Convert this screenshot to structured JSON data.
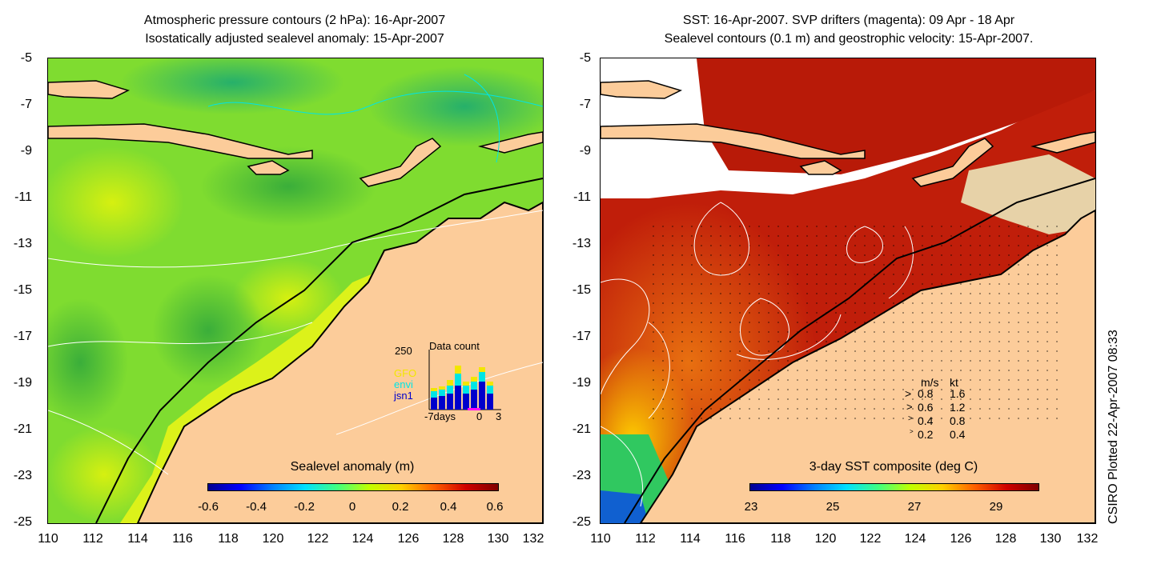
{
  "left_panel": {
    "title_line1": "Atmospheric pressure contours (2 hPa): 16-Apr-2007",
    "title_line2": "Isostatically adjusted sealevel anomaly: 15-Apr-2007",
    "colorbar_label": "Sealevel anomaly (m)",
    "colorbar_ticks": [
      "-0.6",
      "-0.4",
      "-0.2",
      "0",
      "0.2",
      "0.4",
      "0.6"
    ],
    "inset": {
      "title": "Data count",
      "ymax_label": "250",
      "legend": [
        {
          "label": "GFO",
          "color": "#f2e600"
        },
        {
          "label": "envi",
          "color": "#00e5e5"
        },
        {
          "label": "jsn1",
          "color": "#0000cc"
        }
      ],
      "x_labels": [
        "-7days",
        "0",
        "3"
      ]
    }
  },
  "right_panel": {
    "title_line1": "SST: 16-Apr-2007. SVP drifters (magenta): 09 Apr - 18 Apr",
    "title_line2": "Sealevel contours (0.1 m) and geostrophic velocity: 15-Apr-2007.",
    "colorbar_label": "3-day SST composite (deg C)",
    "colorbar_ticks": [
      "23",
      "25",
      "27",
      "29"
    ],
    "velocity_legend": {
      "header_ms": "m/s",
      "header_kt": "kt",
      "rows": [
        {
          "ms": "0.8",
          "kt": "1.6"
        },
        {
          "ms": "0.6",
          "kt": "1.2"
        },
        {
          "ms": "0.4",
          "kt": "0.8"
        },
        {
          "ms": "0.2",
          "kt": "0.4"
        }
      ]
    }
  },
  "axes": {
    "y_ticks": [
      "-5",
      "-7",
      "-9",
      "-11",
      "-13",
      "-15",
      "-17",
      "-19",
      "-21",
      "-23",
      "-25"
    ],
    "x_ticks": [
      "110",
      "112",
      "114",
      "116",
      "118",
      "120",
      "122",
      "124",
      "126",
      "128",
      "130",
      "132"
    ]
  },
  "credit": "CSIRO Plotted 22-Apr-2007 08:33",
  "colors": {
    "land": "#fccc9a",
    "sla_base": "#7fdc30",
    "sst_base": "#c01e0a"
  }
}
